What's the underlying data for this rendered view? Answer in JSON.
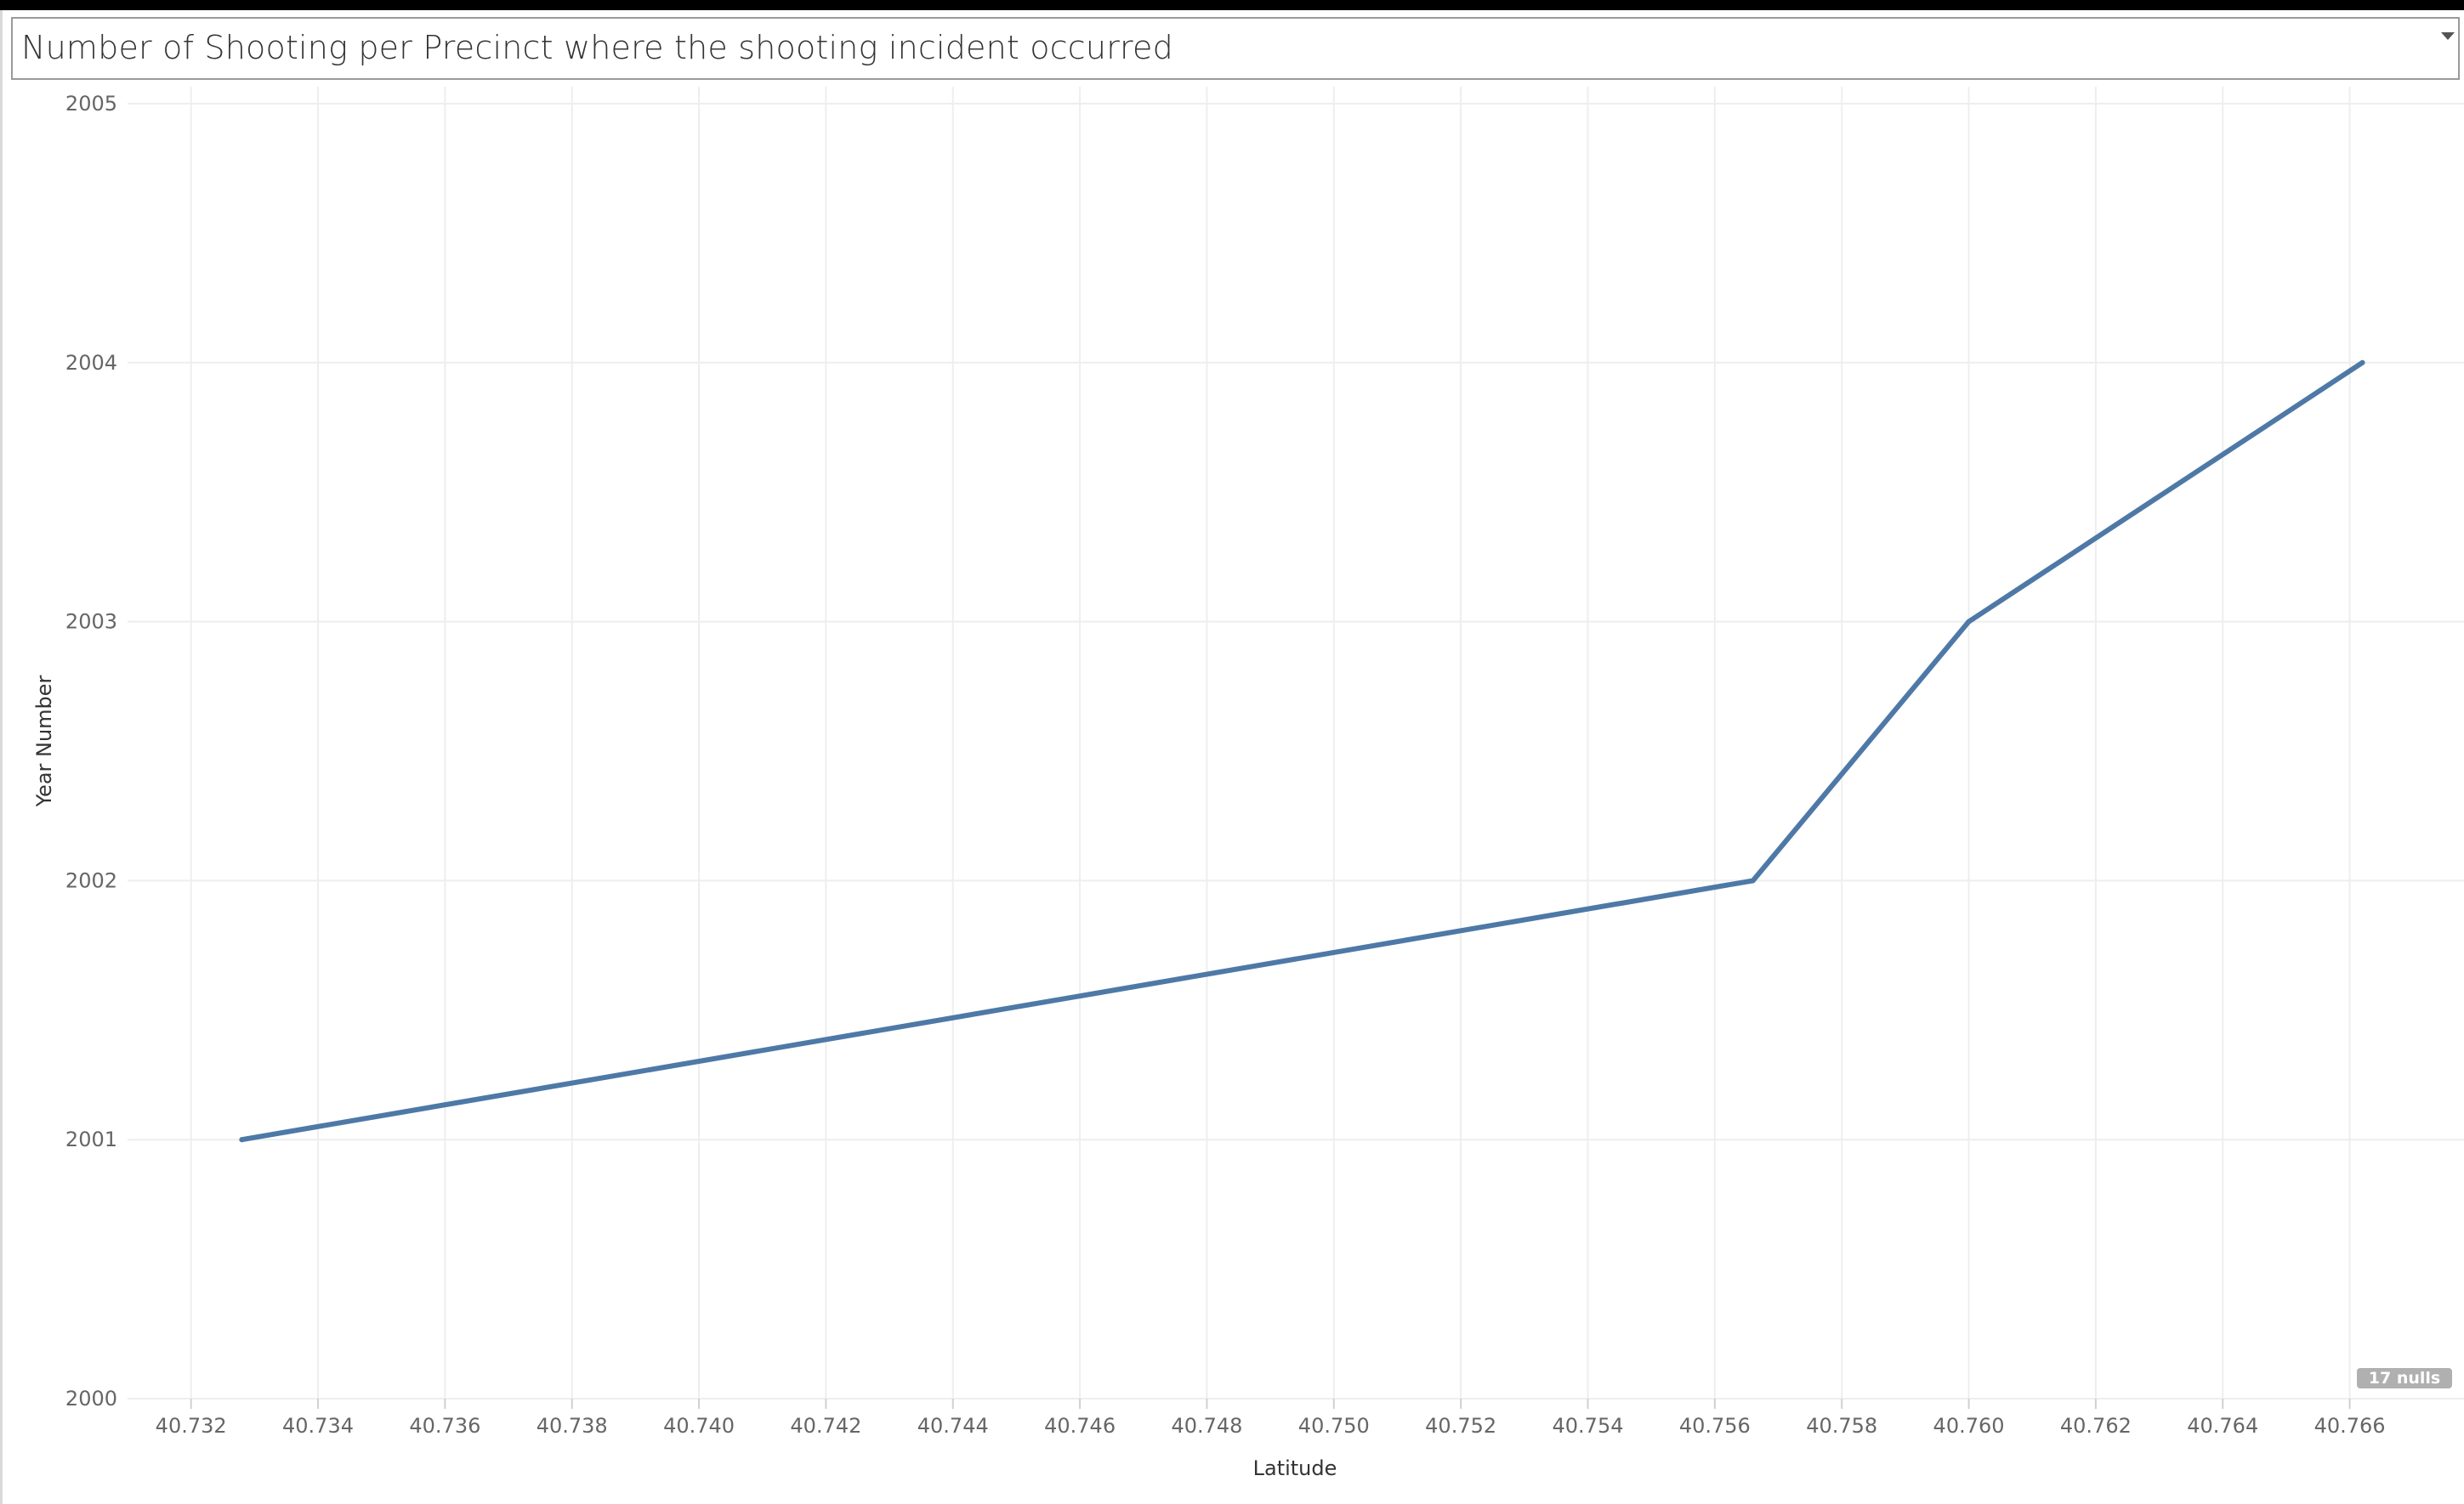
{
  "title": "Number of Shooting per Precinct where the shooting incident occurred",
  "nulls_indicator": "17 nulls",
  "colors": {
    "line": "#4e79a7",
    "grid": "#eeeeee",
    "tick_text": "#666666",
    "badge": "#b0b0b0"
  },
  "icons": {
    "dropdown": "chevron-down-icon"
  },
  "chart_data": {
    "type": "line",
    "title": "Number of Shooting per Precinct where the shooting incident occurred",
    "xlabel": "Latitude",
    "ylabel": "Year Number",
    "xlim": [
      40.731,
      40.7678
    ],
    "ylim": [
      2000,
      2005
    ],
    "x_ticks": [
      "40.732",
      "40.734",
      "40.736",
      "40.738",
      "40.740",
      "40.742",
      "40.744",
      "40.746",
      "40.748",
      "40.750",
      "40.752",
      "40.754",
      "40.756",
      "40.758",
      "40.760",
      "40.762",
      "40.764",
      "40.766"
    ],
    "y_ticks": [
      "2000",
      "2001",
      "2002",
      "2003",
      "2004",
      "2005"
    ],
    "grid": true,
    "series": [
      {
        "x": [
          40.7328,
          40.7566,
          40.76,
          40.7662
        ],
        "y": [
          2001,
          2002,
          2003,
          2004
        ]
      }
    ]
  }
}
